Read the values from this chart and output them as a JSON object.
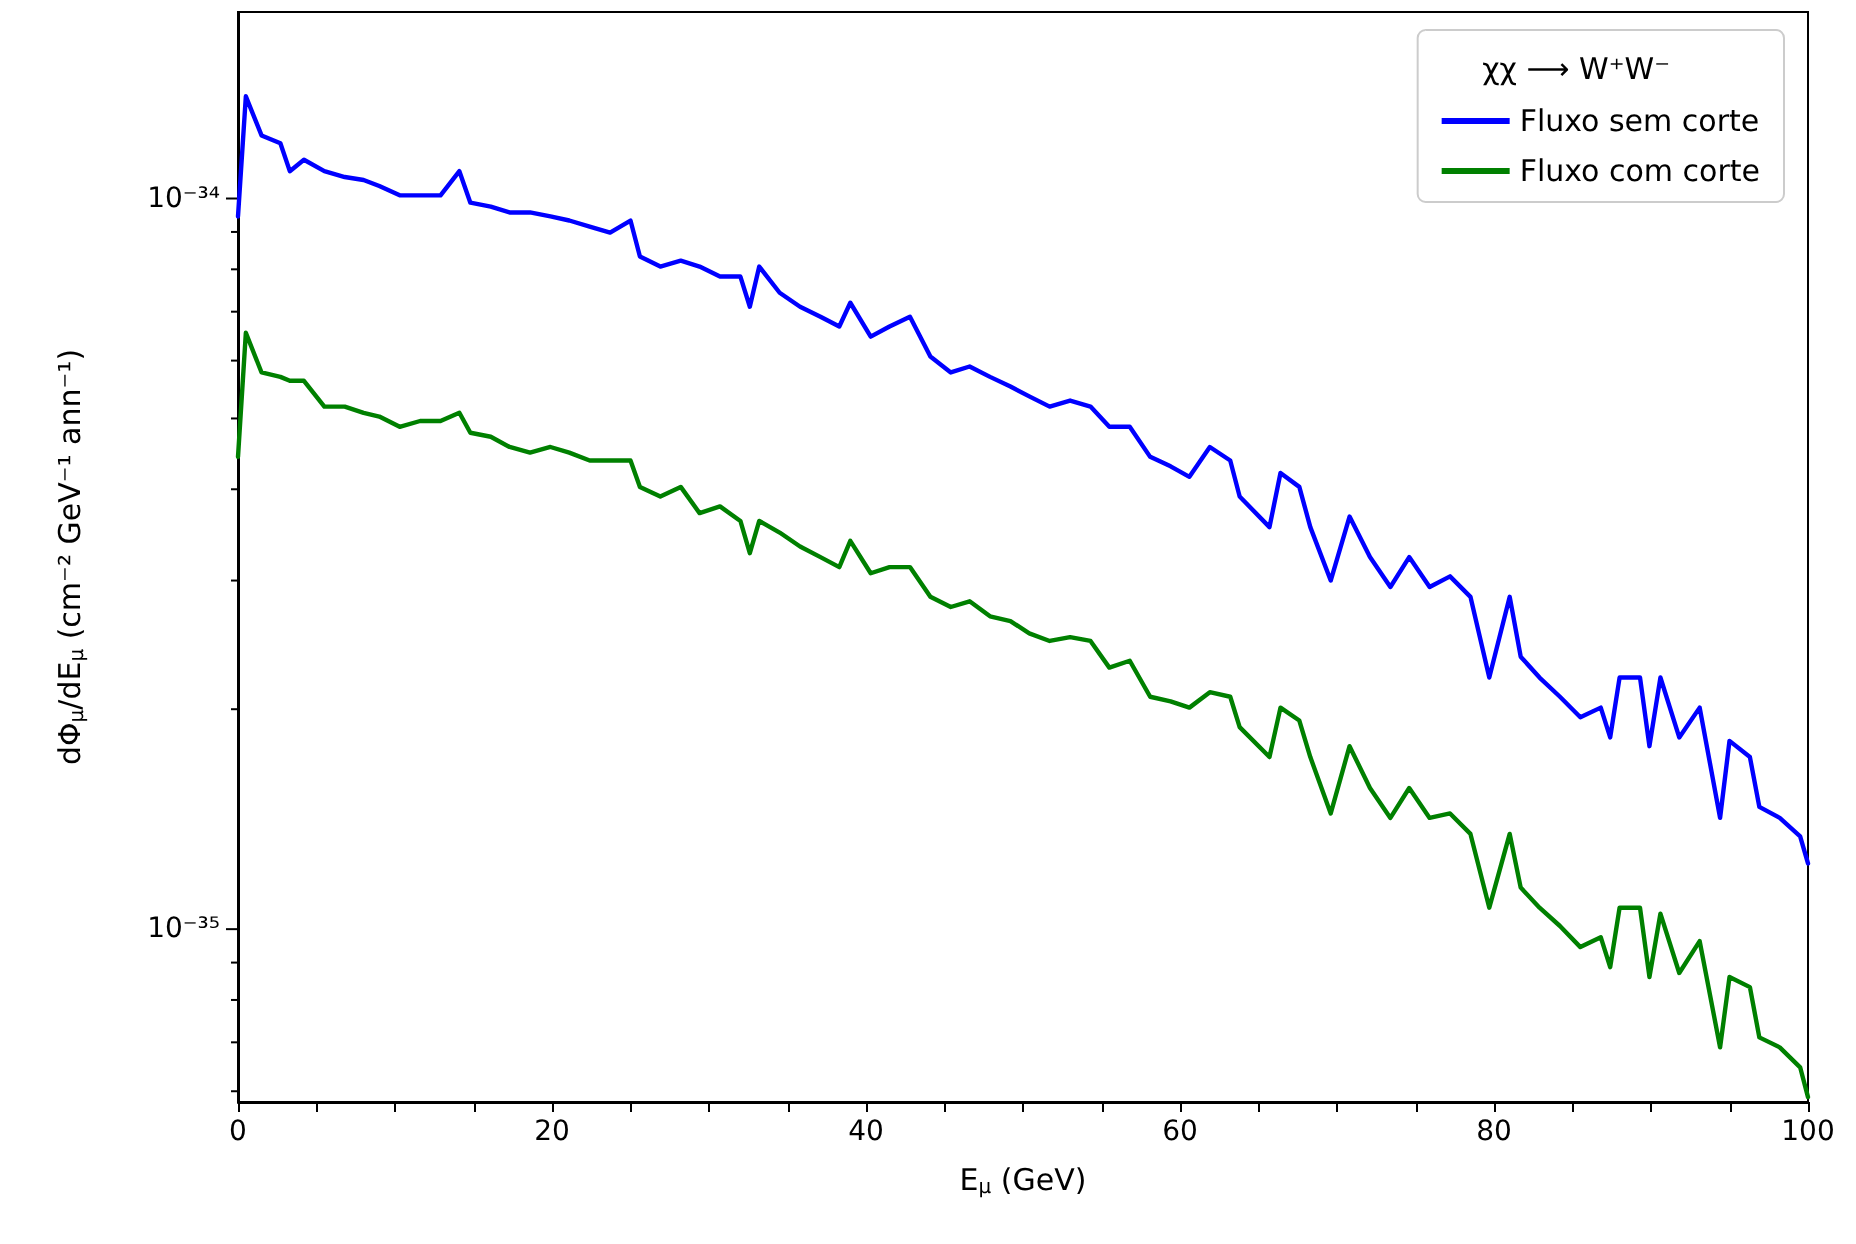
{
  "chart_data": {
    "type": "line",
    "xlabel": "E$_{μ}$ (GeV)",
    "ylabel": "dΦ$_{μ}$/dE$_{μ}$ (cm⁻² GeV⁻¹ ann⁻¹)",
    "legend_title": "χχ ⟶ W⁺W⁻",
    "x": [
      0,
      0.5,
      1.5,
      2.7,
      3.3,
      4.2,
      5.5,
      6.8,
      8.0,
      9.0,
      10.3,
      11.6,
      12.9,
      14.1,
      14.8,
      16.1,
      17.3,
      18.6,
      19.9,
      21.1,
      22.4,
      23.7,
      25.0,
      25.6,
      26.9,
      28.2,
      29.4,
      30.7,
      32.0,
      32.6,
      33.2,
      34.5,
      35.8,
      37.1,
      38.3,
      39.0,
      40.3,
      41.5,
      42.8,
      44.1,
      45.4,
      46.6,
      47.9,
      49.2,
      50.4,
      51.7,
      53.0,
      54.3,
      55.5,
      56.8,
      58.1,
      59.4,
      60.6,
      61.9,
      63.2,
      63.8,
      65.7,
      66.4,
      67.6,
      68.3,
      69.6,
      70.8,
      72.1,
      73.4,
      74.6,
      75.9,
      77.2,
      78.5,
      79.7,
      81.0,
      81.7,
      82.9,
      84.2,
      85.5,
      86.8,
      87.4,
      88.0,
      89.3,
      89.9,
      90.6,
      91.8,
      93.1,
      94.4,
      95.0,
      96.3,
      96.9,
      98.2,
      99.5,
      100
    ],
    "series": [
      {
        "name": "Fluxo sem corte",
        "color": "#0000ff",
        "values": [
          9.45e-35,
          1.38e-34,
          1.22e-34,
          1.19e-34,
          1.09e-34,
          1.13e-34,
          1.09e-34,
          1.07e-34,
          1.06e-34,
          1.04e-34,
          1.01e-34,
          1.01e-34,
          1.01e-34,
          1.09e-34,
          9.87e-35,
          9.75e-35,
          9.57e-35,
          9.57e-35,
          9.45e-35,
          9.33e-35,
          9.15e-35,
          8.98e-35,
          9.33e-35,
          8.33e-35,
          8.07e-35,
          8.22e-35,
          8.07e-35,
          7.82e-35,
          7.82e-35,
          7.11e-35,
          8.07e-35,
          7.43e-35,
          7.11e-35,
          6.89e-35,
          6.68e-35,
          7.2e-35,
          6.47e-35,
          6.68e-35,
          6.89e-35,
          6.08e-35,
          5.78e-35,
          5.89e-35,
          5.7e-35,
          5.53e-35,
          5.36e-35,
          5.19e-35,
          5.29e-35,
          5.19e-35,
          4.87e-35,
          4.87e-35,
          4.43e-35,
          4.3e-35,
          4.16e-35,
          4.57e-35,
          4.38e-35,
          3.91e-35,
          3.55e-35,
          4.21e-35,
          4.03e-35,
          3.55e-35,
          3e-35,
          3.67e-35,
          3.23e-35,
          2.94e-35,
          3.23e-35,
          2.94e-35,
          3.04e-35,
          2.85e-35,
          2.21e-35,
          2.85e-35,
          2.36e-35,
          2.21e-35,
          2.08e-35,
          1.95e-35,
          2.01e-35,
          1.83e-35,
          2.21e-35,
          2.21e-35,
          1.78e-35,
          2.21e-35,
          1.83e-35,
          2.01e-35,
          1.42e-35,
          1.81e-35,
          1.72e-35,
          1.47e-35,
          1.42e-35,
          1.34e-35,
          1.23e-35
        ]
      },
      {
        "name": "Fluxo com corte",
        "color": "#008000",
        "values": [
          4.43e-35,
          6.55e-35,
          5.78e-35,
          5.7e-35,
          5.63e-35,
          5.63e-35,
          5.19e-35,
          5.19e-35,
          5.09e-35,
          5.03e-35,
          4.87e-35,
          4.96e-35,
          4.96e-35,
          5.09e-35,
          4.78e-35,
          4.72e-35,
          4.57e-35,
          4.49e-35,
          4.57e-35,
          4.49e-35,
          4.38e-35,
          4.38e-35,
          4.38e-35,
          4.03e-35,
          3.91e-35,
          4.03e-35,
          3.71e-35,
          3.79e-35,
          3.62e-35,
          3.27e-35,
          3.62e-35,
          3.49e-35,
          3.34e-35,
          3.23e-35,
          3.13e-35,
          3.4e-35,
          3.07e-35,
          3.13e-35,
          3.13e-35,
          2.85e-35,
          2.76e-35,
          2.81e-35,
          2.68e-35,
          2.64e-35,
          2.54e-35,
          2.48e-35,
          2.51e-35,
          2.48e-35,
          2.28e-35,
          2.33e-35,
          2.08e-35,
          2.05e-35,
          2.01e-35,
          2.11e-35,
          2.08e-35,
          1.89e-35,
          1.72e-35,
          2.01e-35,
          1.93e-35,
          1.72e-35,
          1.44e-35,
          1.78e-35,
          1.56e-35,
          1.42e-35,
          1.56e-35,
          1.42e-35,
          1.44e-35,
          1.35e-35,
          1.07e-35,
          1.35e-35,
          1.14e-35,
          1.07e-35,
          1.01e-35,
          9.45e-36,
          9.75e-36,
          8.87e-36,
          1.07e-35,
          1.07e-35,
          8.6e-36,
          1.05e-35,
          8.71e-36,
          9.63e-36,
          6.89e-36,
          8.6e-36,
          8.33e-36,
          7.11e-36,
          6.89e-36,
          6.47e-36,
          5.89e-36
        ]
      }
    ],
    "xlim": [
      0,
      100
    ],
    "xticks": [
      0,
      {
        "value": 5,
        "label": null
      },
      20,
      {
        "value": 10,
        "label": null
      },
      {
        "value": 15,
        "label": null
      },
      {
        "value": 25,
        "label": null
      },
      {
        "value": 30,
        "label": null
      },
      {
        "value": 35,
        "label": null
      },
      40,
      {
        "value": 45,
        "label": null
      },
      {
        "value": 50,
        "label": null
      },
      {
        "value": 55,
        "label": null
      },
      60,
      {
        "value": 65,
        "label": null
      },
      {
        "value": 70,
        "label": null
      },
      {
        "value": 75,
        "label": null
      },
      80,
      {
        "value": 85,
        "label": null
      },
      {
        "value": 90,
        "label": null
      },
      {
        "value": 95,
        "label": null
      },
      100
    ],
    "ylim": [
      5.8e-36,
      1.8e-34
    ],
    "log": true,
    "yticks": [
      {
        "value": 6e-36,
        "label": null
      },
      {
        "value": 7e-36,
        "label": null
      },
      {
        "value": 8e-36,
        "label": null
      },
      {
        "value": 9e-36,
        "label": null
      },
      {
        "value": 1e-35,
        "label": "10⁻³⁵"
      },
      {
        "value": 2e-35,
        "label": null
      },
      {
        "value": 3e-35,
        "label": null
      },
      {
        "value": 4e-35,
        "label": null
      },
      {
        "value": 5e-35,
        "label": null
      },
      {
        "value": 6e-35,
        "label": null
      },
      {
        "value": 7e-35,
        "label": null
      },
      {
        "value": 8e-35,
        "label": null
      },
      {
        "value": 9e-35,
        "label": null
      },
      {
        "value": 1e-34,
        "label": "10⁻³⁴"
      }
    ],
    "grid": false,
    "legend": "top right",
    "marker": "none",
    "line_style": "solid"
  }
}
